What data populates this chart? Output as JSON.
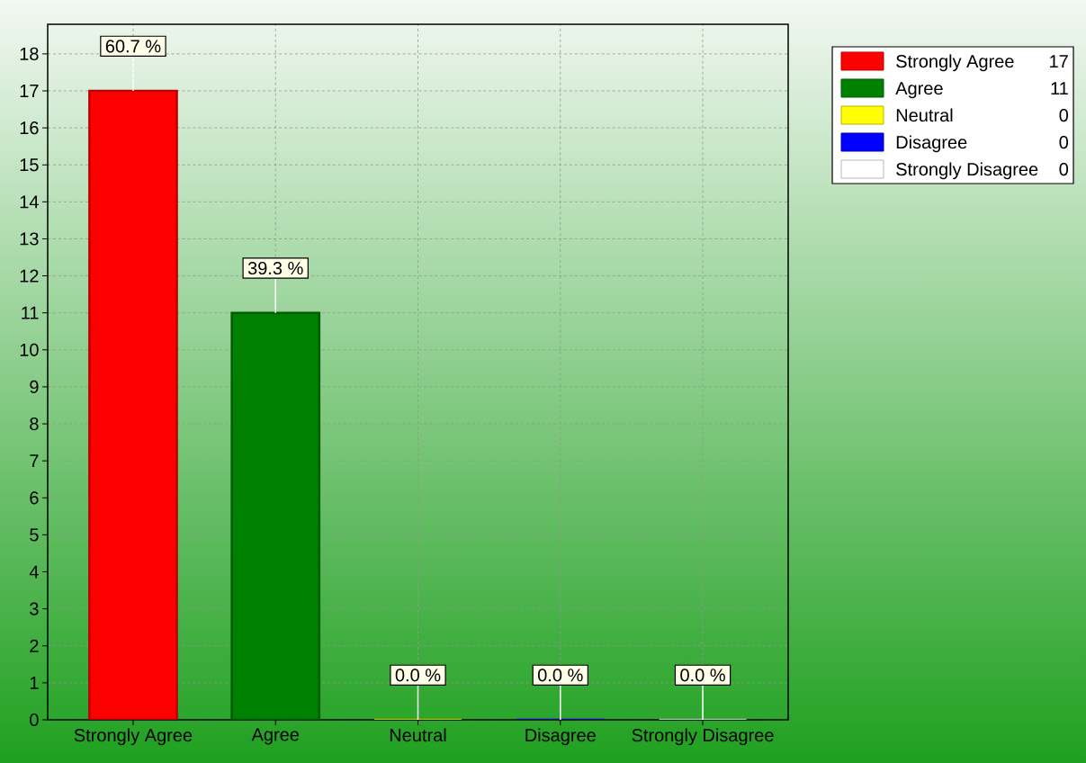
{
  "chart_data": {
    "type": "bar",
    "categories": [
      "Strongly Agree",
      "Agree",
      "Neutral",
      "Disagree",
      "Strongly Disagree"
    ],
    "series": [
      {
        "name": "Strongly Agree",
        "color": "#ff0000",
        "values": [
          17,
          null,
          null,
          null,
          null
        ]
      },
      {
        "name": "Agree",
        "color": "#008000",
        "values": [
          null,
          11,
          null,
          null,
          null
        ]
      },
      {
        "name": "Neutral",
        "color": "#ffff00",
        "values": [
          null,
          null,
          0,
          null,
          null
        ]
      },
      {
        "name": "Disagree",
        "color": "#0000ff",
        "values": [
          null,
          null,
          null,
          0,
          null
        ]
      },
      {
        "name": "Strongly Disagree",
        "color": "#ffffff",
        "values": [
          null,
          null,
          null,
          null,
          0
        ]
      }
    ],
    "annotations": [
      "17",
      "11",
      "0",
      "0",
      "0",
      {
        "text": "60.7 %",
        "x": "Strongly Agree",
        "y": 17
      },
      {
        "text": "39.3 %",
        "x": "Agree",
        "y": 11
      },
      {
        "text": "0.0 %",
        "x": "Neutral",
        "y": 0
      },
      {
        "text": "0.0 %",
        "x": "Disagree",
        "y": 0
      },
      {
        "text": "0.0 %",
        "x": "Strongly Disagree",
        "y": 0
      }
    ],
    "ylim": [
      0,
      18.8
    ],
    "yticks": [
      0,
      1,
      2,
      3,
      4,
      5,
      6,
      7,
      8,
      9,
      10,
      11,
      12,
      13,
      14,
      15,
      16,
      17,
      18
    ],
    "grid": true,
    "legend": "top right"
  }
}
